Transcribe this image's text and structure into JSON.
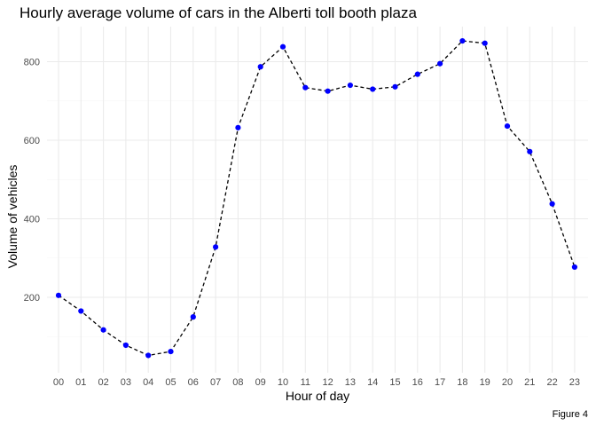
{
  "chart_data": {
    "type": "line",
    "title": "Hourly average volume of cars in the Alberti toll booth plaza",
    "xlabel": "Hour of day",
    "ylabel": "Volume of vehicles",
    "caption": "Figure 4",
    "categories": [
      "00",
      "01",
      "02",
      "03",
      "04",
      "05",
      "06",
      "07",
      "08",
      "09",
      "10",
      "11",
      "12",
      "13",
      "14",
      "15",
      "16",
      "17",
      "18",
      "19",
      "20",
      "21",
      "22",
      "23"
    ],
    "series": [
      {
        "values": [
          205,
          165,
          117,
          78,
          52,
          62,
          150,
          328,
          632,
          787,
          838,
          734,
          725,
          740,
          730,
          736,
          768,
          795,
          853,
          847,
          636,
          571,
          438,
          277
        ],
        "line_color": "#000000",
        "line_style": "dashed",
        "point_color": "#0000ff"
      }
    ],
    "ylim": [
      20,
      890
    ],
    "yticks": [
      200,
      400,
      600,
      800
    ],
    "grid": true
  }
}
